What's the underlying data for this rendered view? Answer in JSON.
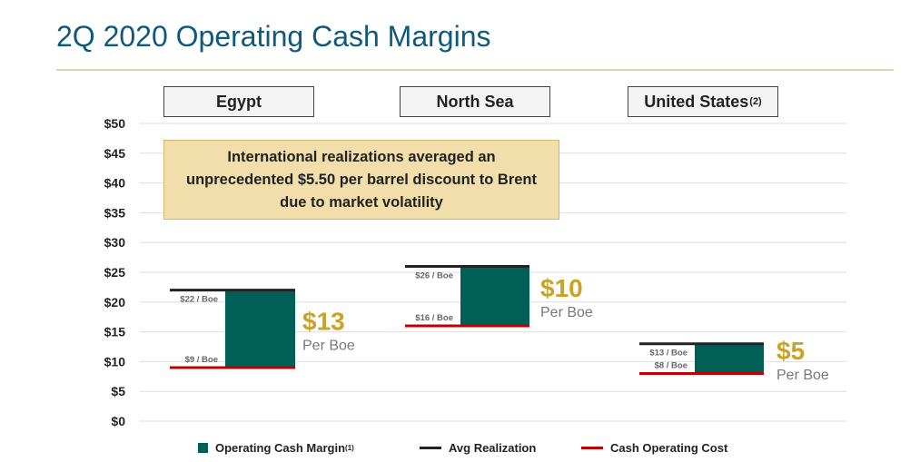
{
  "title": "2Q 2020 Operating Cash Margins",
  "regions": [
    {
      "label": "Egypt",
      "sup": ""
    },
    {
      "label": "North Sea",
      "sup": ""
    },
    {
      "label": "United States",
      "sup": "(2)"
    }
  ],
  "callout": "International realizations averaged an unprecedented $5.50 per barrel discount to Brent due to market volatility",
  "colors": {
    "margin": "#006058",
    "realization": "#222222",
    "cost": "#c00000",
    "accent": "#c9a227",
    "grid": "#dddddd"
  },
  "chart_data": {
    "type": "bar",
    "subtype": "floating-range",
    "title": "2Q 2020 Operating Cash Margins",
    "categories": [
      "Egypt",
      "North Sea",
      "United States"
    ],
    "ylim": [
      0,
      50
    ],
    "y_ticks": [
      0,
      5,
      10,
      15,
      20,
      25,
      30,
      35,
      40,
      45,
      50
    ],
    "y_tick_labels": [
      "$0",
      "$5",
      "$10",
      "$15",
      "$20",
      "$25",
      "$30",
      "$35",
      "$40",
      "$45",
      "$50"
    ],
    "series": [
      {
        "name": "Avg Realization",
        "values": [
          22,
          26,
          13
        ],
        "labels": [
          "$22 / Boe",
          "$26 / Boe",
          "$13 / Boe"
        ]
      },
      {
        "name": "Cash Operating Cost",
        "values": [
          9,
          16,
          8
        ],
        "labels": [
          "$9 / Boe",
          "$16 / Boe",
          "$8 / Boe"
        ]
      },
      {
        "name": "Operating Cash Margin",
        "values": [
          13,
          10,
          5
        ],
        "labels": [
          "$13",
          "$10",
          "$5"
        ],
        "unit": "Per Boe"
      }
    ],
    "legend": [
      {
        "name": "Operating Cash Margin",
        "sup": "(1)"
      },
      {
        "name": "Avg Realization",
        "sup": ""
      },
      {
        "name": "Cash Operating Cost",
        "sup": ""
      }
    ]
  }
}
